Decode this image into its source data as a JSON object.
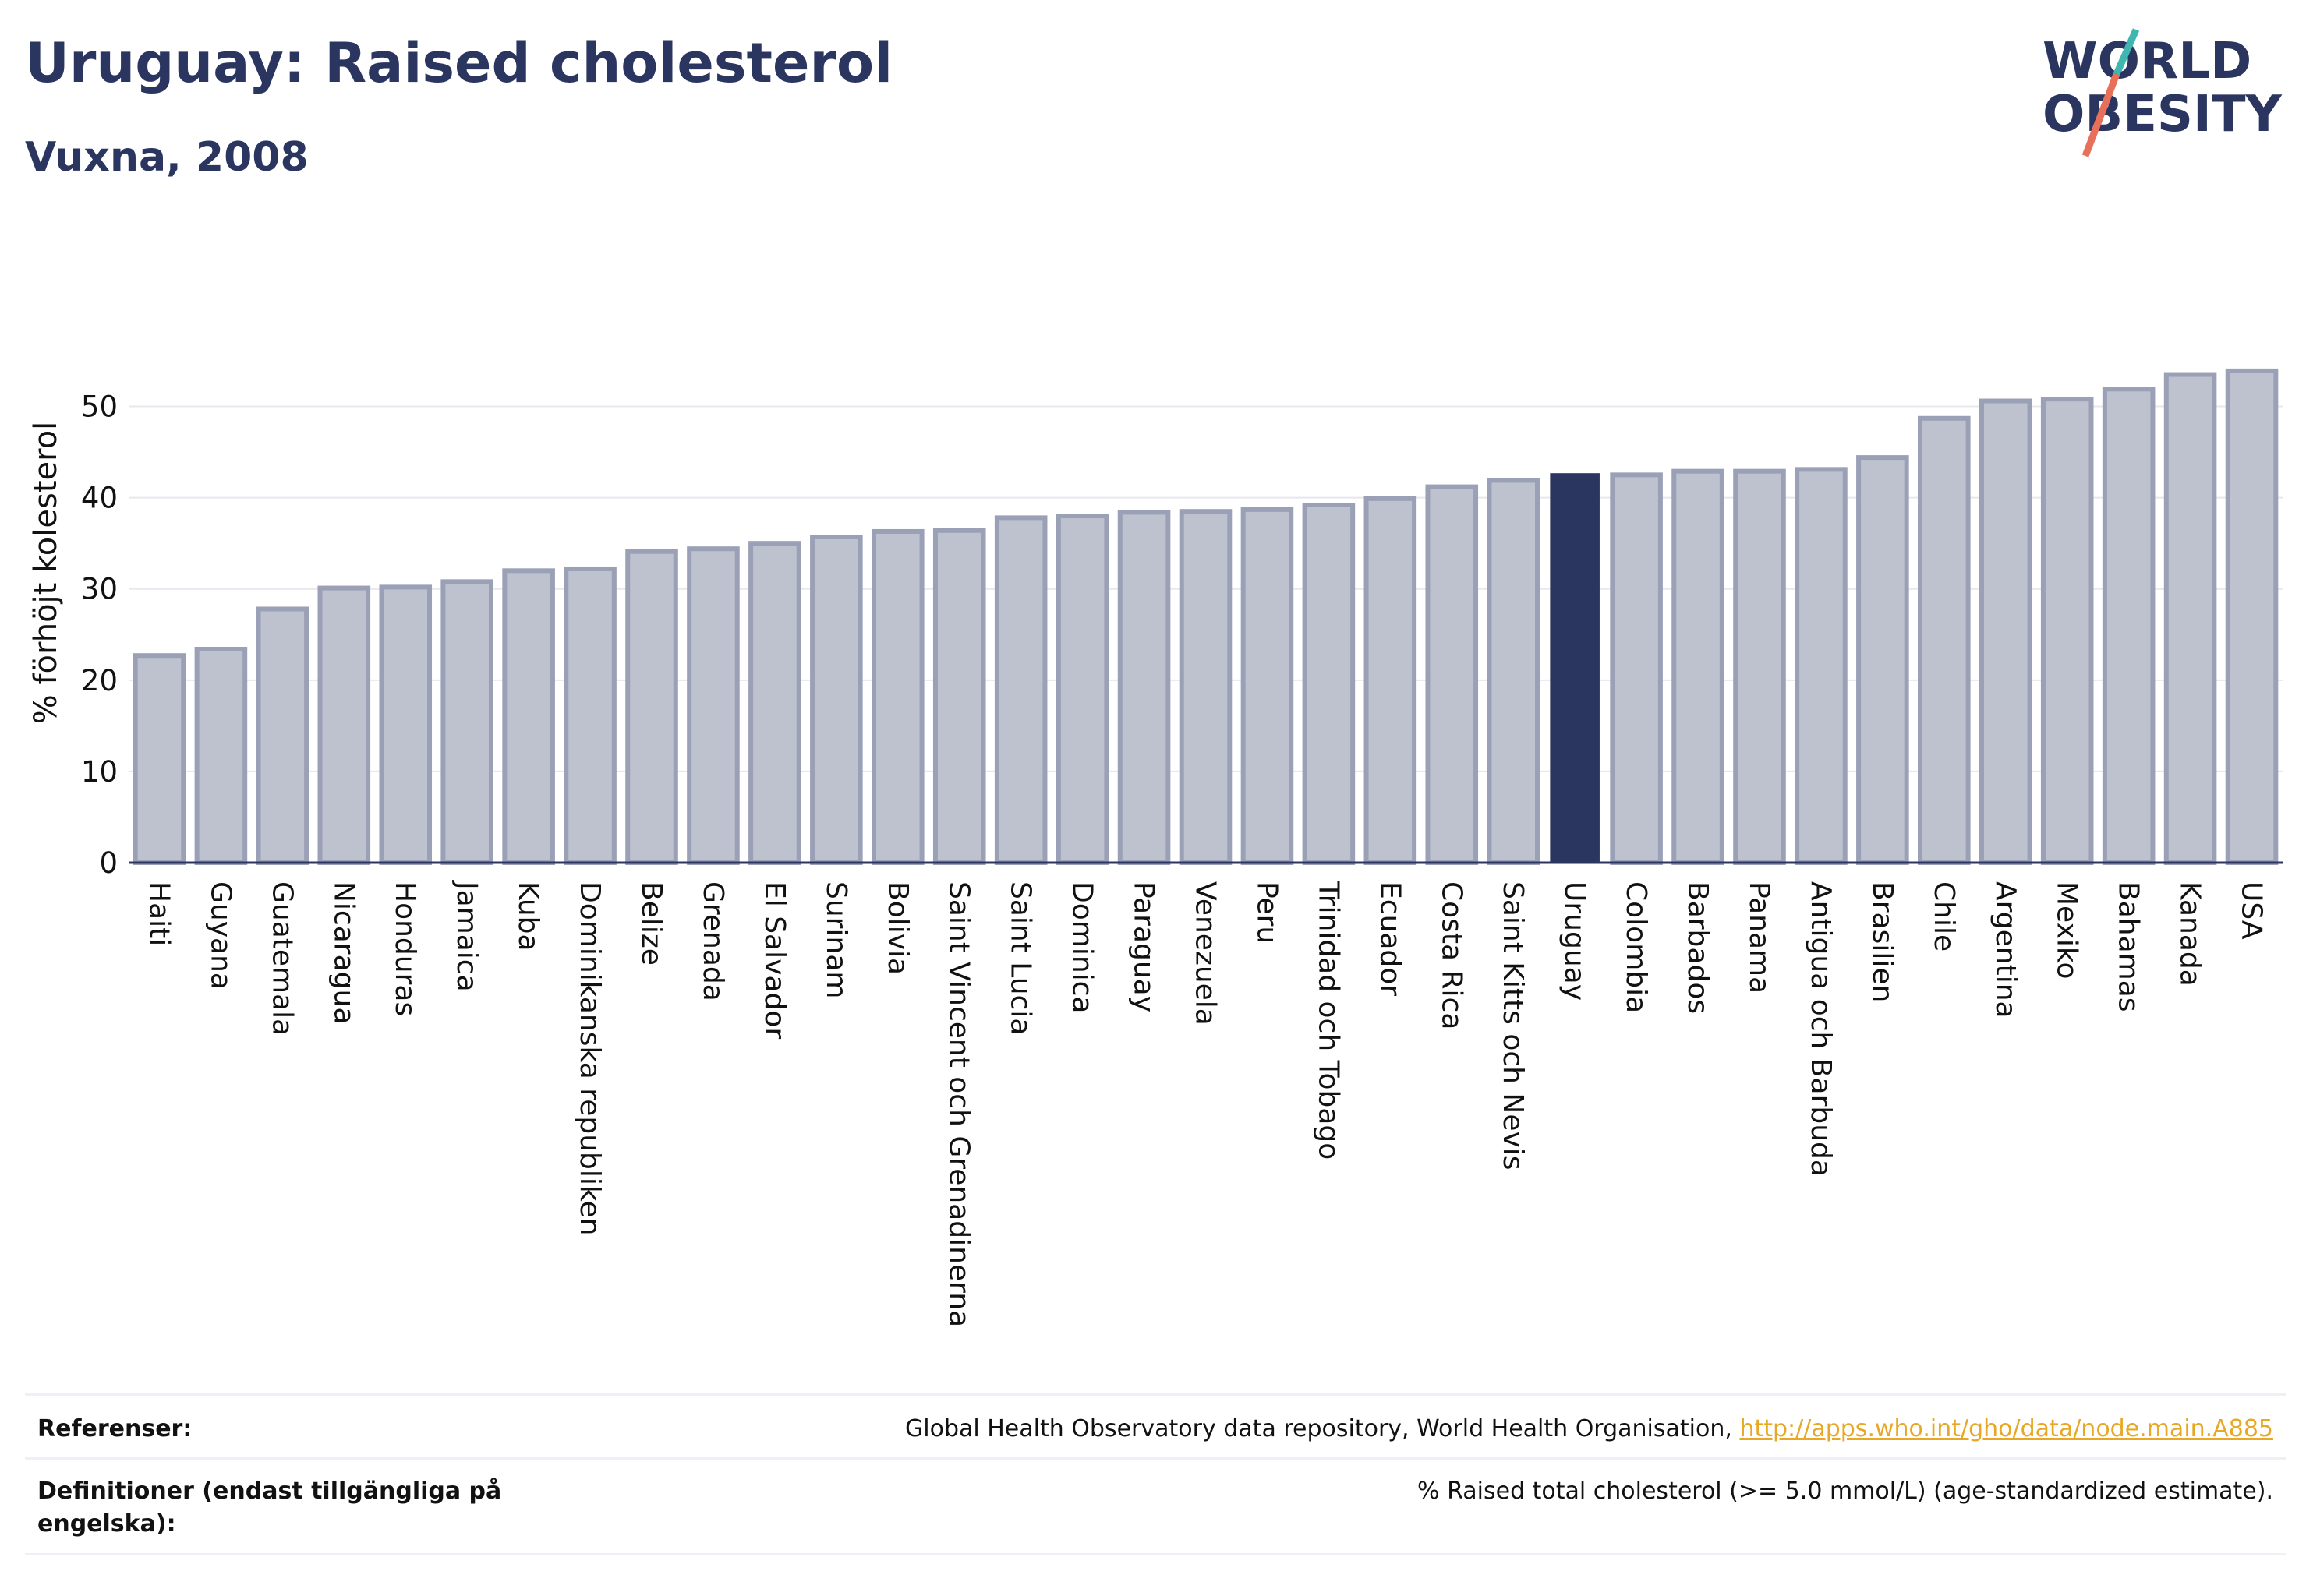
{
  "header": {
    "title": "Uruguay: Raised cholesterol",
    "subtitle": "Vuxna, 2008"
  },
  "logo": {
    "line1": "WORLD",
    "line2": "OBESITY"
  },
  "chart_data": {
    "type": "bar",
    "title": "Uruguay: Raised cholesterol",
    "subtitle": "Vuxna, 2008",
    "ylabel": "% förhöjt kolesterol",
    "xlabel": "",
    "ylim": [
      0,
      55
    ],
    "yticks": [
      0,
      10,
      20,
      30,
      40,
      50
    ],
    "grid": true,
    "highlight": "Uruguay",
    "colors": {
      "bar": "#bec2ce",
      "bar_edge": "#9aa0b6",
      "highlight": "#2a3560",
      "axis": "#2a3560"
    },
    "categories": [
      "Haiti",
      "Guyana",
      "Guatemala",
      "Nicaragua",
      "Honduras",
      "Jamaica",
      "Kuba",
      "Dominikanska republiken",
      "Belize",
      "Grenada",
      "El Salvador",
      "Surinam",
      "Bolivia",
      "Saint Vincent och Grenadinerna",
      "Saint Lucia",
      "Dominica",
      "Paraguay",
      "Venezuela",
      "Peru",
      "Trinidad och Tobago",
      "Ecuador",
      "Costa Rica",
      "Saint Kitts och Nevis",
      "Uruguay",
      "Colombia",
      "Barbados",
      "Panama",
      "Antigua och Barbuda",
      "Brasilien",
      "Chile",
      "Argentina",
      "Mexiko",
      "Bahamas",
      "Kanada",
      "USA"
    ],
    "values": [
      22.7,
      23.4,
      27.8,
      30.1,
      30.2,
      30.8,
      32.0,
      32.2,
      34.1,
      34.4,
      35.0,
      35.7,
      36.3,
      36.4,
      37.8,
      38.0,
      38.4,
      38.5,
      38.7,
      39.2,
      39.9,
      41.2,
      41.9,
      42.6,
      42.5,
      42.9,
      42.9,
      43.1,
      44.4,
      48.7,
      50.6,
      50.8,
      51.9,
      53.5,
      53.9
    ]
  },
  "footer": {
    "references_label": "Referenser:",
    "references_text": "Global Health Observatory data repository, World Health Organisation, ",
    "references_link": "http://apps.who.int/gho/data/node.main.A885",
    "definitions_label": "Definitioner (endast tillgängliga på engelska):",
    "definitions_text": "% Raised total cholesterol (>= 5.0 mmol/L) (age-standardized estimate)."
  }
}
